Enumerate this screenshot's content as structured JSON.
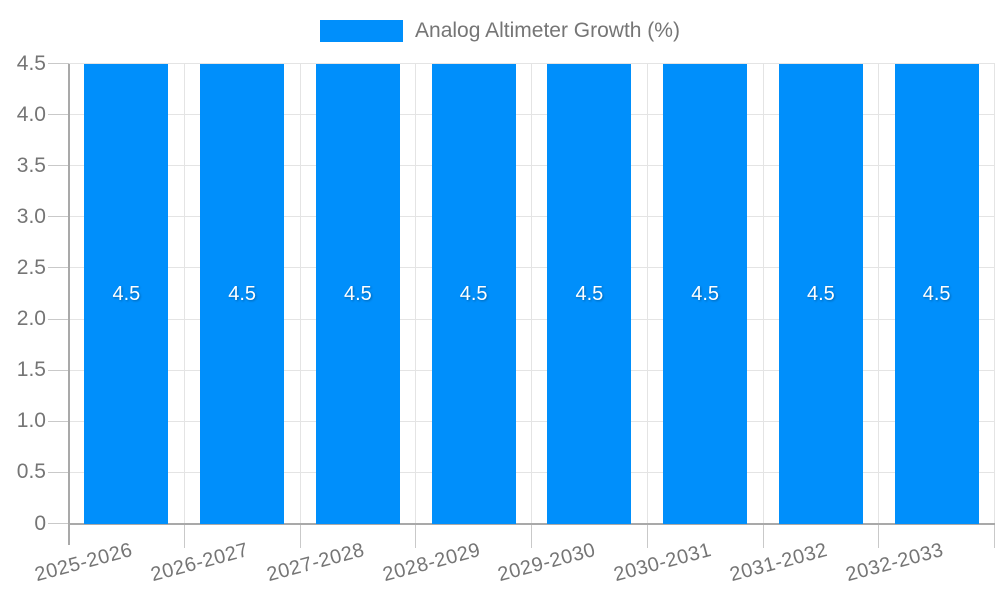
{
  "chart_data": {
    "type": "bar",
    "title": "",
    "xlabel": "",
    "ylabel": "",
    "ylim": [
      0,
      4.5
    ],
    "grid": true,
    "legend": {
      "position": "top",
      "items": [
        {
          "label": "Analog Altimeter Growth (%)",
          "color": "#008FFB"
        }
      ]
    },
    "categories": [
      "2025-2026",
      "2026-2027",
      "2027-2028",
      "2028-2029",
      "2029-2030",
      "2030-2031",
      "2031-2032",
      "2032-2033"
    ],
    "series": [
      {
        "name": "Analog Altimeter Growth (%)",
        "values": [
          4.5,
          4.5,
          4.5,
          4.5,
          4.5,
          4.5,
          4.5,
          4.5
        ]
      }
    ],
    "bar_labels": [
      "4.5",
      "4.5",
      "4.5",
      "4.5",
      "4.5",
      "4.5",
      "4.5",
      "4.5"
    ],
    "yticks": [
      {
        "value": 0,
        "label": "0"
      },
      {
        "value": 0.5,
        "label": "0.5"
      },
      {
        "value": 1,
        "label": "1.0"
      },
      {
        "value": 1.5,
        "label": "1.5"
      },
      {
        "value": 2,
        "label": "2.0"
      },
      {
        "value": 2.5,
        "label": "2.5"
      },
      {
        "value": 3,
        "label": "3.0"
      },
      {
        "value": 3.5,
        "label": "3.5"
      },
      {
        "value": 4,
        "label": "4.0"
      },
      {
        "value": 4.5,
        "label": "4.5"
      }
    ]
  },
  "colors": {
    "bar": "#008FFB",
    "bar_label": "#FFFFFF",
    "axis_label": "#757575",
    "legend_label": "#757575",
    "gridline": "#E4E4E4",
    "axis_line": "#A9A9A9",
    "tick": "#C9C9C9",
    "background": "#FFFFFF"
  }
}
